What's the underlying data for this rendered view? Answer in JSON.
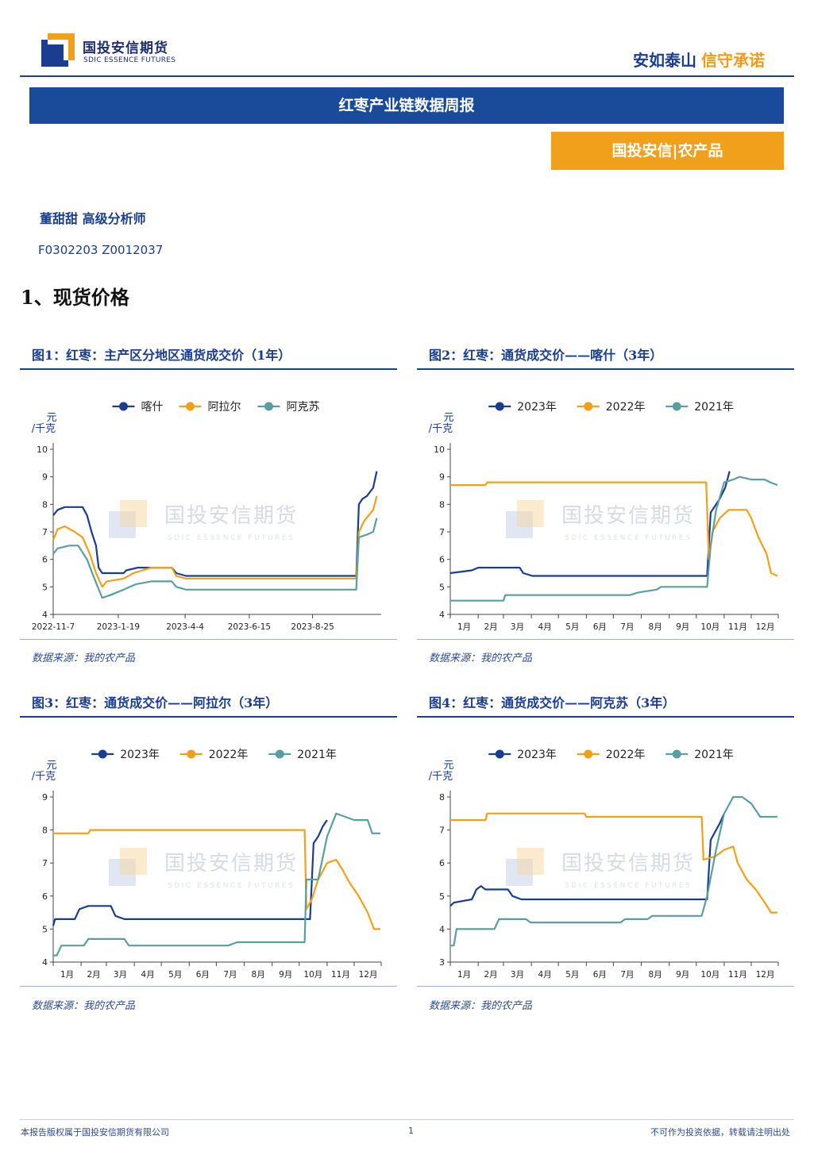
{
  "header": {
    "logo_cn": "国投安信期货",
    "logo_en": "SDIC ESSENCE FUTURES",
    "slogan_a": "安如泰山",
    "slogan_b": "信守承诺",
    "report_title": "红枣产业链数据周报",
    "sub_title": "国投安信|农产品"
  },
  "author": {
    "name": "董甜甜  高级分析师",
    "cert": "F0302203  Z0012037"
  },
  "section_title": "1、现货价格",
  "watermark": {
    "cn": "国投安信期货",
    "en": "SDIC ESSENCE FUTURES"
  },
  "colors": {
    "navy": "#1a3d8f",
    "orange": "#f0a01a",
    "teal": "#5b9ea0",
    "grid": "#d9d9d9"
  },
  "footer": {
    "left": "本报告版权属于国投安信期货有限公司",
    "page": "1",
    "right": "不可作为投资依据，转载请注明出处"
  },
  "chart_data": [
    {
      "type": "line",
      "title": "图1：红枣：主产区分地区通货成交价（1年）",
      "ylabel": "元/千克",
      "ylim": [
        4,
        10
      ],
      "yticks": [
        4,
        5,
        6,
        7,
        8,
        9,
        10
      ],
      "xlim": [
        "2022-11-07",
        "2023-11-10"
      ],
      "xticks": [
        "2022-11-7",
        "2023-1-19",
        "2023-4-4",
        "2023-6-15",
        "2023-8-25"
      ],
      "legend_position": "top",
      "source": "数据来源：我的农产品",
      "series": [
        {
          "name": "喀什",
          "color": "#1a3d8f",
          "points": [
            [
              "2022-11-07",
              7.6
            ],
            [
              "2022-11-12",
              7.8
            ],
            [
              "2022-11-20",
              7.9
            ],
            [
              "2022-12-10",
              7.9
            ],
            [
              "2022-12-15",
              7.6
            ],
            [
              "2022-12-20",
              7.0
            ],
            [
              "2022-12-25",
              6.5
            ],
            [
              "2022-12-28",
              5.7
            ],
            [
              "2023-01-01",
              5.5
            ],
            [
              "2023-01-25",
              5.5
            ],
            [
              "2023-01-28",
              5.6
            ],
            [
              "2023-02-10",
              5.7
            ],
            [
              "2023-03-20",
              5.7
            ],
            [
              "2023-03-25",
              5.5
            ],
            [
              "2023-04-05",
              5.4
            ],
            [
              "2023-10-13",
              5.4
            ],
            [
              "2023-10-16",
              8.0
            ],
            [
              "2023-10-20",
              8.2
            ],
            [
              "2023-10-25",
              8.3
            ],
            [
              "2023-11-01",
              8.6
            ],
            [
              "2023-11-05",
              9.2
            ]
          ]
        },
        {
          "name": "阿拉尔",
          "color": "#f0a01a",
          "points": [
            [
              "2022-11-07",
              6.7
            ],
            [
              "2022-11-12",
              7.1
            ],
            [
              "2022-11-20",
              7.2
            ],
            [
              "2022-12-01",
              7.0
            ],
            [
              "2022-12-10",
              6.8
            ],
            [
              "2022-12-18",
              6.2
            ],
            [
              "2022-12-25",
              5.5
            ],
            [
              "2023-01-01",
              5.0
            ],
            [
              "2023-01-06",
              5.2
            ],
            [
              "2023-01-25",
              5.3
            ],
            [
              "2023-02-05",
              5.5
            ],
            [
              "2023-02-25",
              5.7
            ],
            [
              "2023-03-20",
              5.7
            ],
            [
              "2023-03-25",
              5.4
            ],
            [
              "2023-04-05",
              5.3
            ],
            [
              "2023-10-13",
              5.3
            ],
            [
              "2023-10-16",
              7.0
            ],
            [
              "2023-10-22",
              7.4
            ],
            [
              "2023-11-01",
              7.8
            ],
            [
              "2023-11-05",
              8.3
            ]
          ]
        },
        {
          "name": "阿克苏",
          "color": "#5b9ea0",
          "points": [
            [
              "2022-11-07",
              6.2
            ],
            [
              "2022-11-12",
              6.4
            ],
            [
              "2022-11-25",
              6.5
            ],
            [
              "2022-12-05",
              6.5
            ],
            [
              "2022-12-15",
              6.0
            ],
            [
              "2022-12-22",
              5.4
            ],
            [
              "2023-01-01",
              4.6
            ],
            [
              "2023-01-10",
              4.7
            ],
            [
              "2023-01-25",
              4.9
            ],
            [
              "2023-02-08",
              5.1
            ],
            [
              "2023-02-25",
              5.2
            ],
            [
              "2023-03-20",
              5.2
            ],
            [
              "2023-03-25",
              5.0
            ],
            [
              "2023-04-05",
              4.9
            ],
            [
              "2023-10-13",
              4.9
            ],
            [
              "2023-10-16",
              6.8
            ],
            [
              "2023-10-25",
              6.9
            ],
            [
              "2023-11-01",
              7.0
            ],
            [
              "2023-11-05",
              7.5
            ]
          ]
        }
      ]
    },
    {
      "type": "line",
      "title": "图2：红枣：通货成交价——喀什（3年）",
      "ylabel": "元/千克",
      "ylim": [
        4,
        10
      ],
      "yticks": [
        4,
        5,
        6,
        7,
        8,
        9,
        10
      ],
      "xticks": [
        "1月",
        "2月",
        "3月",
        "4月",
        "5月",
        "6月",
        "7月",
        "8月",
        "9月",
        "10月",
        "11月",
        "12月"
      ],
      "x_unit": "day_of_year",
      "legend_position": "top",
      "source": "数据来源：我的农产品",
      "series": [
        {
          "name": "2023年",
          "color": "#1a3d8f",
          "points": [
            [
              1,
              5.5
            ],
            [
              25,
              5.6
            ],
            [
              32,
              5.7
            ],
            [
              78,
              5.7
            ],
            [
              82,
              5.5
            ],
            [
              92,
              5.4
            ],
            [
              286,
              5.4
            ],
            [
              290,
              7.7
            ],
            [
              300,
              8.2
            ],
            [
              306,
              8.6
            ],
            [
              311,
              9.2
            ]
          ]
        },
        {
          "name": "2022年",
          "color": "#f0a01a",
          "points": [
            [
              1,
              8.7
            ],
            [
              40,
              8.7
            ],
            [
              42,
              8.8
            ],
            [
              285,
              8.8
            ],
            [
              288,
              6.0
            ],
            [
              292,
              7.0
            ],
            [
              300,
              7.5
            ],
            [
              310,
              7.8
            ],
            [
              330,
              7.8
            ],
            [
              335,
              7.5
            ],
            [
              343,
              6.8
            ],
            [
              352,
              6.2
            ],
            [
              357,
              5.5
            ],
            [
              364,
              5.4
            ]
          ]
        },
        {
          "name": "2021年",
          "color": "#5b9ea0",
          "points": [
            [
              1,
              4.5
            ],
            [
              60,
              4.5
            ],
            [
              62,
              4.7
            ],
            [
              200,
              4.7
            ],
            [
              210,
              4.8
            ],
            [
              230,
              4.9
            ],
            [
              235,
              5.0
            ],
            [
              286,
              5.0
            ],
            [
              290,
              6.5
            ],
            [
              296,
              7.8
            ],
            [
              305,
              8.8
            ],
            [
              315,
              8.9
            ],
            [
              322,
              9.0
            ],
            [
              335,
              8.9
            ],
            [
              350,
              8.9
            ],
            [
              356,
              8.8
            ],
            [
              364,
              8.7
            ]
          ]
        }
      ]
    },
    {
      "type": "line",
      "title": "图3：红枣：通货成交价——阿拉尔（3年）",
      "ylabel": "元/千克",
      "ylim": [
        4,
        9
      ],
      "yticks": [
        4,
        5,
        6,
        7,
        8,
        9
      ],
      "xticks": [
        "1月",
        "2月",
        "3月",
        "4月",
        "5月",
        "6月",
        "7月",
        "8月",
        "9月",
        "10月",
        "11月",
        "12月"
      ],
      "x_unit": "day_of_year",
      "legend_position": "top",
      "source": "数据来源：我的农产品",
      "series": [
        {
          "name": "2023年",
          "color": "#1a3d8f",
          "points": [
            [
              1,
              5.1
            ],
            [
              3,
              5.3
            ],
            [
              25,
              5.3
            ],
            [
              30,
              5.6
            ],
            [
              40,
              5.7
            ],
            [
              65,
              5.7
            ],
            [
              70,
              5.4
            ],
            [
              80,
              5.3
            ],
            [
              286,
              5.3
            ],
            [
              290,
              7.6
            ],
            [
              295,
              7.8
            ],
            [
              300,
              8.1
            ],
            [
              305,
              8.3
            ]
          ]
        },
        {
          "name": "2022年",
          "color": "#f0a01a",
          "points": [
            [
              1,
              7.9
            ],
            [
              40,
              7.9
            ],
            [
              42,
              8.0
            ],
            [
              280,
              8.0
            ],
            [
              282,
              5.6
            ],
            [
              288,
              5.9
            ],
            [
              295,
              6.5
            ],
            [
              305,
              7.0
            ],
            [
              315,
              7.1
            ],
            [
              322,
              6.8
            ],
            [
              330,
              6.4
            ],
            [
              340,
              6.0
            ],
            [
              350,
              5.5
            ],
            [
              357,
              5.0
            ],
            [
              364,
              5.0
            ]
          ]
        },
        {
          "name": "2021年",
          "color": "#5b9ea0",
          "points": [
            [
              1,
              4.2
            ],
            [
              5,
              4.2
            ],
            [
              10,
              4.5
            ],
            [
              35,
              4.5
            ],
            [
              40,
              4.7
            ],
            [
              80,
              4.7
            ],
            [
              85,
              4.5
            ],
            [
              195,
              4.5
            ],
            [
              205,
              4.6
            ],
            [
              280,
              4.6
            ],
            [
              282,
              6.5
            ],
            [
              295,
              6.5
            ],
            [
              305,
              7.8
            ],
            [
              315,
              8.5
            ],
            [
              325,
              8.4
            ],
            [
              335,
              8.3
            ],
            [
              350,
              8.3
            ],
            [
              355,
              7.9
            ],
            [
              364,
              7.9
            ]
          ]
        }
      ]
    },
    {
      "type": "line",
      "title": "图4：红枣：通货成交价——阿克苏（3年）",
      "ylabel": "元/千克",
      "ylim": [
        3,
        8
      ],
      "yticks": [
        3,
        4,
        5,
        6,
        7,
        8
      ],
      "xticks": [
        "1月",
        "2月",
        "3月",
        "4月",
        "5月",
        "6月",
        "7月",
        "8月",
        "9月",
        "10月",
        "11月",
        "12月"
      ],
      "x_unit": "day_of_year",
      "legend_position": "top",
      "source": "数据来源：我的农产品",
      "series": [
        {
          "name": "2023年",
          "color": "#1a3d8f",
          "points": [
            [
              1,
              4.7
            ],
            [
              5,
              4.8
            ],
            [
              25,
              4.9
            ],
            [
              30,
              5.2
            ],
            [
              35,
              5.3
            ],
            [
              40,
              5.2
            ],
            [
              65,
              5.2
            ],
            [
              70,
              5.0
            ],
            [
              80,
              4.9
            ],
            [
              286,
              4.9
            ],
            [
              290,
              6.7
            ],
            [
              296,
              7.0
            ],
            [
              300,
              7.2
            ],
            [
              305,
              7.5
            ]
          ]
        },
        {
          "name": "2022年",
          "color": "#f0a01a",
          "points": [
            [
              1,
              7.3
            ],
            [
              40,
              7.3
            ],
            [
              42,
              7.5
            ],
            [
              150,
              7.5
            ],
            [
              152,
              7.4
            ],
            [
              280,
              7.4
            ],
            [
              282,
              6.1
            ],
            [
              295,
              6.2
            ],
            [
              305,
              6.4
            ],
            [
              315,
              6.5
            ],
            [
              320,
              6.0
            ],
            [
              330,
              5.5
            ],
            [
              340,
              5.2
            ],
            [
              350,
              4.8
            ],
            [
              357,
              4.5
            ],
            [
              364,
              4.5
            ]
          ]
        },
        {
          "name": "2021年",
          "color": "#5b9ea0",
          "points": [
            [
              1,
              3.5
            ],
            [
              5,
              3.5
            ],
            [
              8,
              4.0
            ],
            [
              50,
              4.0
            ],
            [
              55,
              4.3
            ],
            [
              85,
              4.3
            ],
            [
              90,
              4.2
            ],
            [
              190,
              4.2
            ],
            [
              195,
              4.3
            ],
            [
              220,
              4.3
            ],
            [
              225,
              4.4
            ],
            [
              280,
              4.4
            ],
            [
              286,
              5.0
            ],
            [
              296,
              6.4
            ],
            [
              305,
              7.5
            ],
            [
              315,
              8.0
            ],
            [
              325,
              8.0
            ],
            [
              335,
              7.8
            ],
            [
              345,
              7.4
            ],
            [
              364,
              7.4
            ]
          ]
        }
      ]
    }
  ]
}
